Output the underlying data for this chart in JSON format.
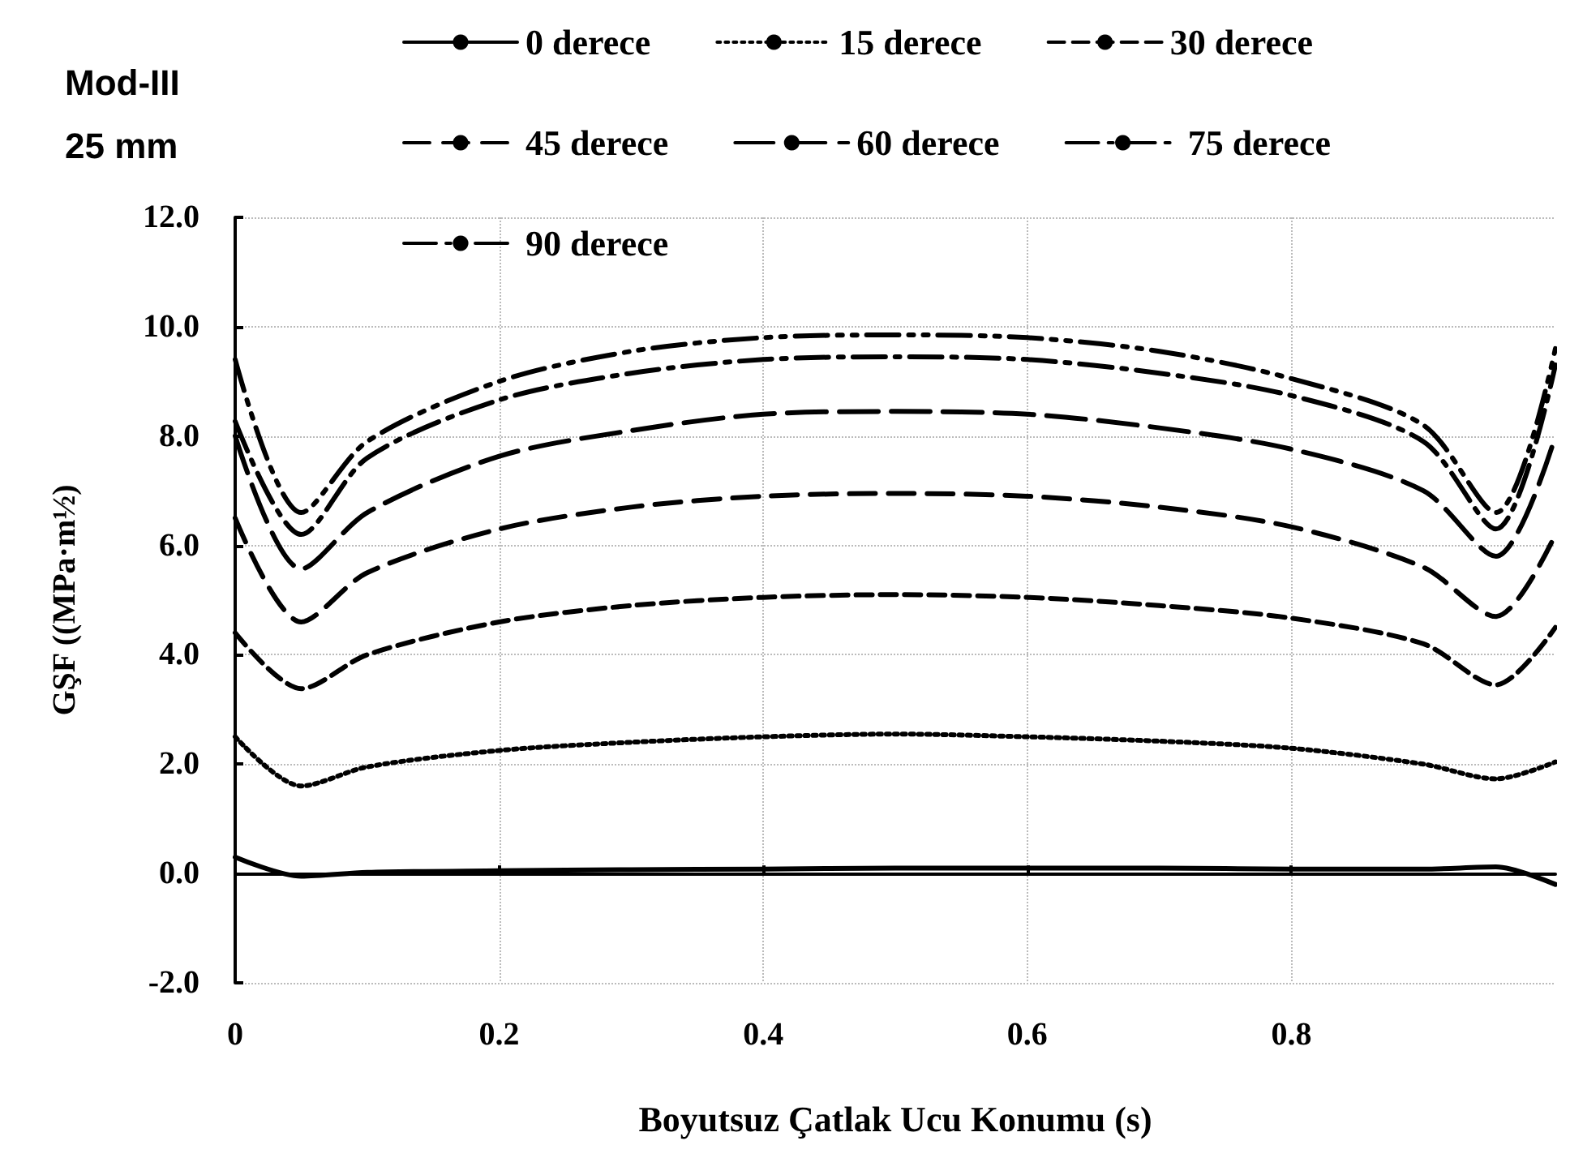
{
  "chart_data": {
    "type": "line",
    "title": "Mod-III",
    "subtitle": "25 mm",
    "xlabel": "Boyutsuz Çatlak Ucu Konumu (s)",
    "ylabel": "GŞF ((MPa·m½)",
    "x": [
      0,
      0.05,
      0.1,
      0.2,
      0.3,
      0.4,
      0.5,
      0.6,
      0.7,
      0.8,
      0.9,
      0.955,
      1
    ],
    "series": [
      {
        "name": "0 derece",
        "color": "#000000",
        "line_style": "solid",
        "values": [
          0.3,
          -0.05,
          0.02,
          0.05,
          0.07,
          0.08,
          0.1,
          0.1,
          0.1,
          0.08,
          0.08,
          0.12,
          -0.2
        ]
      },
      {
        "name": "15 derece",
        "color": "#000000",
        "line_style": "dotted",
        "values": [
          2.5,
          1.6,
          1.95,
          2.25,
          2.4,
          2.5,
          2.55,
          2.5,
          2.42,
          2.29,
          2.0,
          1.73,
          2.04
        ]
      },
      {
        "name": "30 derece",
        "color": "#000000",
        "line_style": "dashed",
        "values": [
          4.4,
          3.38,
          4.0,
          4.6,
          4.9,
          5.05,
          5.1,
          5.05,
          4.9,
          4.67,
          4.2,
          3.45,
          4.5
        ]
      },
      {
        "name": "45 derece",
        "color": "#000000",
        "line_style": "dashed",
        "values": [
          6.5,
          4.6,
          5.5,
          6.3,
          6.7,
          6.9,
          6.95,
          6.9,
          6.7,
          6.34,
          5.6,
          4.7,
          6.2
        ]
      },
      {
        "name": "60 derece",
        "color": "#000000",
        "line_style": "dashed",
        "values": [
          8.0,
          5.57,
          6.6,
          7.63,
          8.1,
          8.4,
          8.45,
          8.4,
          8.15,
          7.76,
          7.0,
          5.8,
          8.0
        ]
      },
      {
        "name": "75 derece",
        "color": "#000000",
        "line_style": "dashed",
        "values": [
          8.27,
          6.2,
          7.6,
          8.66,
          9.15,
          9.4,
          9.45,
          9.4,
          9.15,
          8.74,
          7.9,
          6.3,
          9.3
        ]
      },
      {
        "name": "90 derece",
        "color": "#000000",
        "line_style": "dashed",
        "values": [
          9.4,
          6.6,
          7.9,
          9.0,
          9.55,
          9.8,
          9.85,
          9.8,
          9.55,
          9.05,
          8.2,
          6.6,
          9.6
        ]
      }
    ],
    "xlim": [
      0,
      1
    ],
    "xticks": [
      0,
      0.2,
      0.4,
      0.6,
      0.8
    ],
    "ylim": [
      -2,
      12
    ],
    "yticks": [
      {
        "value": -2,
        "label": "-2.0"
      },
      {
        "value": 0,
        "label": "0.0"
      },
      {
        "value": 2,
        "label": "2.0"
      },
      {
        "value": 4,
        "label": "4.0"
      },
      {
        "value": 6,
        "label": "6.0"
      },
      {
        "value": 8,
        "label": "8.0"
      },
      {
        "value": 10,
        "label": "10.0"
      },
      {
        "value": 12,
        "label": "12.0"
      }
    ],
    "grid": true,
    "legend": "top",
    "marker": "none"
  }
}
